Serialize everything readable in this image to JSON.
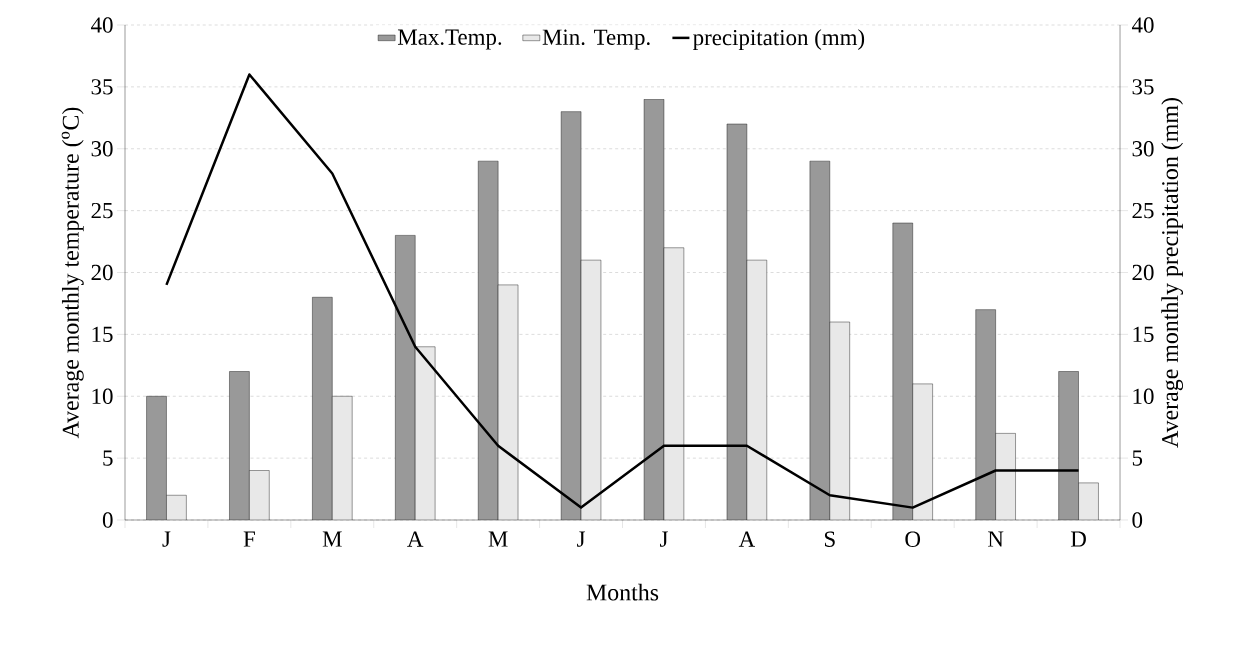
{
  "chart_data": {
    "type": "bar",
    "xlabel": "Months",
    "ylabel": "Average monthly temperature ($^{o}$C)",
    "y2label": "Average monthly precipitation (mm)",
    "categories": [
      "J",
      "F",
      "M",
      "A",
      "M",
      "J",
      "J",
      "A",
      "S",
      "O",
      "N",
      "D"
    ],
    "series": [
      {
        "name": "Max.Temp.",
        "color": "#999999",
        "values": [
          10,
          12,
          18,
          23,
          29,
          33,
          34,
          32,
          29,
          24,
          17,
          12
        ]
      },
      {
        "name": "Min. Temp.",
        "color": "#e8e8e8",
        "values": [
          2,
          4,
          10,
          14,
          19,
          21,
          22,
          21,
          16,
          11,
          7,
          3
        ]
      },
      {
        "name": "precipitation (mm)",
        "type": "line",
        "axis": "y2",
        "color": "#000000",
        "values": [
          19,
          36,
          28,
          14,
          6,
          1,
          6,
          6,
          2,
          1,
          4,
          4
        ]
      }
    ],
    "ylim": [
      0,
      40
    ],
    "yticks": [
      0,
      5,
      10,
      15,
      20,
      25,
      30,
      35,
      40
    ],
    "y2lim": [
      0,
      40
    ],
    "y2ticks": [
      0,
      5,
      10,
      15,
      20,
      25,
      30,
      35,
      40
    ],
    "grid": "y",
    "legend": "top"
  }
}
